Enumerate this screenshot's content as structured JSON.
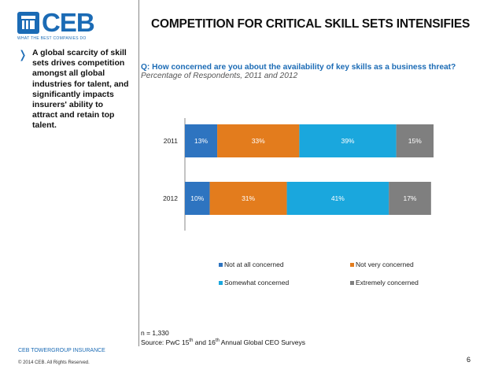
{
  "brand": {
    "name": "CEB",
    "tagline": "WHAT THE BEST COMPANIES DO",
    "accent_color": "#1b6bb5"
  },
  "sidebar": {
    "bullet_icon": "chevron-right-icon",
    "text": "A global scarcity of skill sets drives competition amongst all global industries for talent, and significantly impacts insurers' ability to attract and retain top talent."
  },
  "slide": {
    "title": "COMPETITION FOR CRITICAL SKILL SETS INTENSIFIES",
    "question": "Q: How concerned are you about the availability of key skills as a business threat?",
    "subtitle": "Percentage of Respondents, 2011 and 2012"
  },
  "chart_data": {
    "type": "bar",
    "orientation": "horizontal",
    "stacked": true,
    "categories": [
      "2011",
      "2012"
    ],
    "series": [
      {
        "name": "Not at all concerned",
        "color": "#2e74c0",
        "values": [
          13,
          10
        ]
      },
      {
        "name": "Not very concerned",
        "color": "#e37c1d",
        "values": [
          33,
          31
        ]
      },
      {
        "name": "Somewhat concerned",
        "color": "#1aa7dd",
        "values": [
          39,
          41
        ]
      },
      {
        "name": "Extremely concerned",
        "color": "#7f7f7f",
        "values": [
          15,
          17
        ]
      }
    ],
    "value_suffix": "%",
    "xlim": [
      0,
      100
    ],
    "legend_position": "bottom"
  },
  "footnotes": {
    "n": "n = 1,330",
    "source_prefix": "Source: PwC 15",
    "source_sup1": "th",
    "source_mid": " and 16",
    "source_sup2": "th",
    "source_suffix": " Annual Global CEO Surveys"
  },
  "footer": {
    "company": "CEB TOWERGROUP INSURANCE",
    "copyright": "© 2014 CEB. All Rights Reserved.",
    "page_number": "6"
  }
}
